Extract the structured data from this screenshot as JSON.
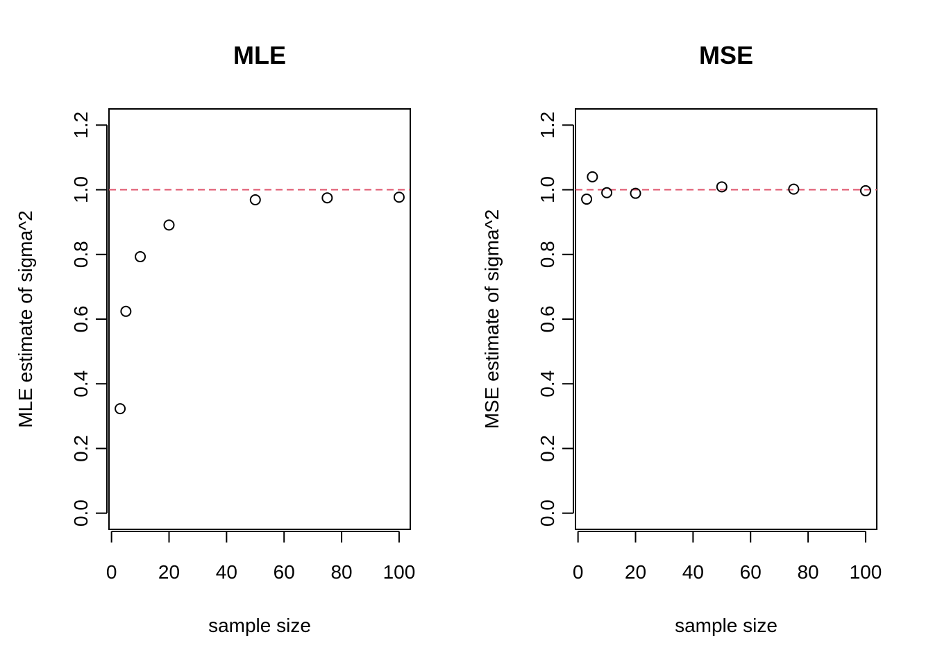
{
  "chart_data": [
    {
      "type": "scatter",
      "title": "MLE",
      "xlabel": "sample size",
      "ylabel": "MLE estimate of sigma^2",
      "x": [
        3,
        5,
        10,
        20,
        50,
        75,
        100
      ],
      "y": [
        0.323,
        0.624,
        0.793,
        0.891,
        0.969,
        0.975,
        0.977
      ],
      "xlim": [
        -0.88,
        103.88
      ],
      "ylim": [
        -0.05,
        1.25
      ],
      "x_ticks": [
        0,
        20,
        40,
        60,
        80,
        100
      ],
      "x_tick_labels": [
        "0",
        "20",
        "40",
        "60",
        "80",
        "100"
      ],
      "y_ticks": [
        0,
        0.2,
        0.4,
        0.6,
        0.8,
        1.0,
        1.2
      ],
      "y_tick_labels": [
        "0.0",
        "0.2",
        "0.4",
        "0.6",
        "0.8",
        "1.0",
        "1.2"
      ],
      "reference_line": {
        "y": 1.0,
        "color": "#DF536B",
        "style": "dashed"
      },
      "marker": "open-circle",
      "grid": false
    },
    {
      "type": "scatter",
      "title": "MSE",
      "xlabel": "sample size",
      "ylabel": "MSE estimate of sigma^2",
      "x": [
        3,
        5,
        10,
        20,
        50,
        75,
        100
      ],
      "y": [
        0.971,
        1.04,
        0.991,
        0.989,
        1.009,
        1.002,
        0.997
      ],
      "xlim": [
        -0.88,
        103.88
      ],
      "ylim": [
        -0.05,
        1.25
      ],
      "x_ticks": [
        0,
        20,
        40,
        60,
        80,
        100
      ],
      "x_tick_labels": [
        "0",
        "20",
        "40",
        "60",
        "80",
        "100"
      ],
      "y_ticks": [
        0,
        0.2,
        0.4,
        0.6,
        0.8,
        1.0,
        1.2
      ],
      "y_tick_labels": [
        "0.0",
        "0.2",
        "0.4",
        "0.6",
        "0.8",
        "1.0",
        "1.2"
      ],
      "reference_line": {
        "y": 1.0,
        "color": "#DF536B",
        "style": "dashed"
      },
      "marker": "open-circle",
      "grid": false
    }
  ]
}
